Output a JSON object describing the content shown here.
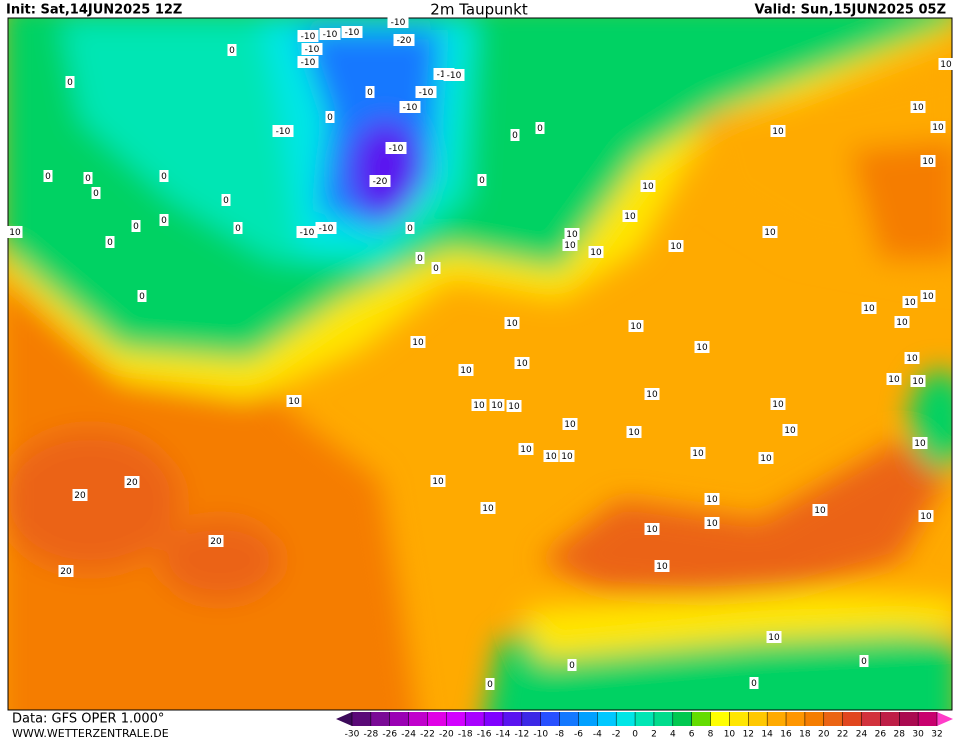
{
  "header": {
    "init": "Init: Sat,14JUN2025 12Z",
    "title": "2m Taupunkt",
    "valid": "Valid: Sun,15JUN2025 05Z"
  },
  "footer": {
    "data": "Data: GFS OPER 1.000°",
    "site": "WWW.WETTERZENTRALE.DE"
  },
  "colorbar": {
    "ticks": [
      -30,
      -28,
      -26,
      -24,
      -22,
      -20,
      -18,
      -16,
      -14,
      -12,
      -10,
      -8,
      -6,
      -4,
      -2,
      0,
      2,
      4,
      6,
      8,
      10,
      12,
      14,
      16,
      18,
      20,
      22,
      24,
      26,
      28,
      30,
      32
    ],
    "colors": [
      "#5a0a78",
      "#7a0a96",
      "#9a00b4",
      "#c000cc",
      "#e000e6",
      "#d200ff",
      "#a800ff",
      "#8000ff",
      "#5a14f0",
      "#3c28e6",
      "#2850ff",
      "#1478ff",
      "#00a0ff",
      "#00c8ff",
      "#00e6e6",
      "#00e6b4",
      "#00dc8c",
      "#00c850",
      "#64dc00",
      "#ffff00",
      "#ffe600",
      "#ffc800",
      "#ffaa00",
      "#ff9600",
      "#f57d00",
      "#eb6414",
      "#e1461e",
      "#d2323c",
      "#be1e46",
      "#aa0a50",
      "#c8006e"
    ],
    "arrow_colors": [
      "#3c0a5a",
      "#ff3cc8"
    ]
  },
  "contour_labels": [
    0,
    0,
    0,
    0,
    0,
    0,
    0,
    0,
    0,
    0,
    0,
    0,
    10,
    -10,
    -10,
    -10,
    -10,
    -10,
    -10,
    -20,
    -10,
    -20,
    -10,
    -10,
    0,
    -10,
    -10,
    -10,
    0,
    0,
    0,
    0,
    0,
    0,
    0,
    -10,
    -10,
    10,
    10,
    10,
    10,
    10,
    10,
    10,
    10,
    10,
    10,
    10,
    10,
    10,
    10,
    10,
    10,
    10,
    10,
    10,
    10,
    10,
    10,
    10,
    10,
    10,
    10,
    10,
    10,
    10,
    10,
    10,
    10,
    10,
    10,
    10,
    10,
    10,
    10,
    10,
    10,
    10,
    10,
    10,
    10,
    10,
    10,
    10,
    10,
    10,
    20,
    20,
    20,
    20,
    0,
    0,
    0,
    0
  ]
}
